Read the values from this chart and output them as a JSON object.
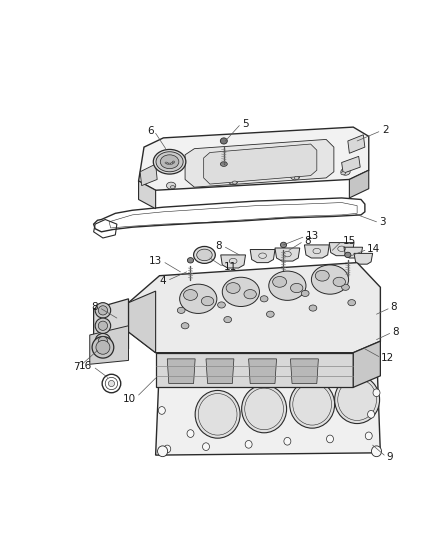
{
  "background_color": "#ffffff",
  "figsize": [
    4.39,
    5.33
  ],
  "dpi": 100,
  "label_fontsize": 7.5,
  "line_color": "#2a2a2a",
  "label_color": "#1a1a1a",
  "gray_light": "#e8e8e8",
  "gray_mid": "#d0d0d0",
  "gray_dark": "#b0b0b0",
  "white": "#f8f8f8"
}
